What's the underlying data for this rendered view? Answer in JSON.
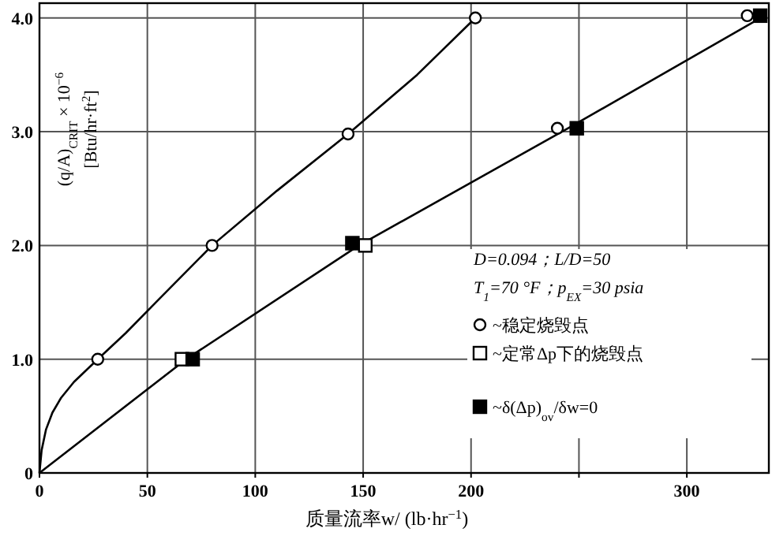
{
  "chart_data": {
    "type": "scatter",
    "xlabel": "质量流率w/ (lb·hr$^{−1}$)",
    "ylabel": "(q/A)$_{CRIT}$ × 10$^{−6}$\n[Btu/hr·ft$^{2}$]",
    "xlim": [
      0,
      338
    ],
    "ylim": [
      0,
      4.13
    ],
    "xticks": [
      0,
      50,
      100,
      150,
      200,
      {
        "value": 250,
        "label": null
      },
      300
    ],
    "yticks": [
      0,
      {
        "value": 1,
        "label": "1.0"
      },
      {
        "value": 2,
        "label": "2.0"
      },
      {
        "value": 3,
        "label": "3.0"
      },
      {
        "value": 4,
        "label": "4.0"
      }
    ],
    "grid": true,
    "legend": "right",
    "annotations": [
      "D=0.094；L/D=50",
      "T$_{1}$=70 °F；p$_{EX}$=30 psia"
    ],
    "series": [
      {
        "type": "line",
        "color": "#000000",
        "x": [
          0,
          1,
          3,
          6,
          10,
          16,
          27,
          40,
          55,
          80,
          110,
          143,
          175,
          202
        ],
        "values": [
          0,
          0.2,
          0.38,
          0.53,
          0.66,
          0.8,
          1.0,
          1.23,
          1.52,
          2.0,
          2.48,
          2.98,
          3.5,
          4.0
        ]
      },
      {
        "type": "line",
        "color": "#000000",
        "x": [
          0,
          68,
          148,
          245,
          336
        ],
        "values": [
          0,
          1.0,
          2.0,
          3.03,
          4.02
        ]
      },
      {
        "name": "~稳定烧毁点",
        "color": "#ffffff",
        "marker": "circle",
        "x": [
          27,
          80,
          143,
          202,
          240,
          328
        ],
        "values": [
          1.0,
          2.0,
          2.98,
          4.0,
          3.03,
          4.02
        ]
      },
      {
        "name": "~定常Δp下的烧毁点",
        "color": "#ffffff",
        "marker": "square",
        "x": [
          66,
          151
        ],
        "values": [
          1.0,
          2.0
        ]
      },
      {
        "name": "~δ(Δp)$_{ov}$/δw=0",
        "color": "#000000",
        "marker": "square",
        "x": [
          71,
          145,
          249,
          334
        ],
        "values": [
          1.0,
          2.02,
          3.03,
          4.02
        ]
      }
    ]
  }
}
